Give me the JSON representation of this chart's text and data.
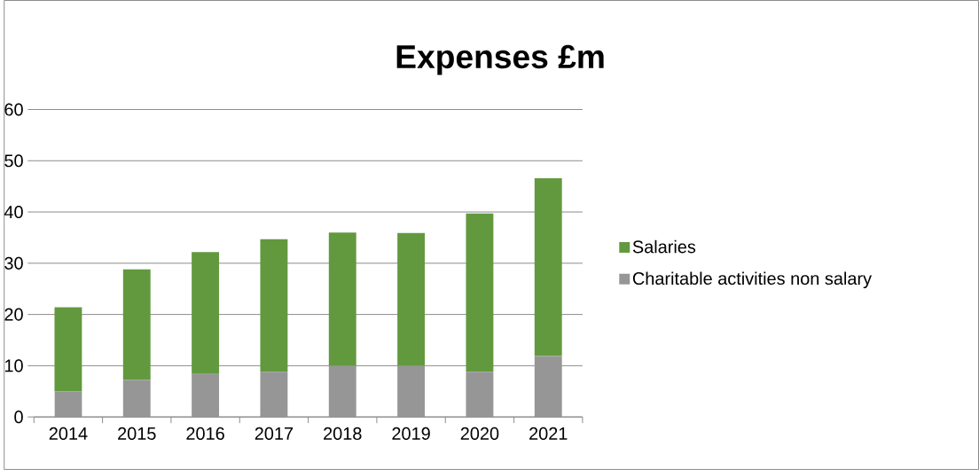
{
  "chart_data": {
    "type": "bar",
    "title": "Expenses £m",
    "stacked": true,
    "categories": [
      "2014",
      "2015",
      "2016",
      "2017",
      "2018",
      "2019",
      "2020",
      "2021"
    ],
    "series": [
      {
        "name": "Charitable activities non salary",
        "color": "#969696",
        "values": [
          5.0,
          7.2,
          8.4,
          8.8,
          10.0,
          10.0,
          8.8,
          11.9
        ]
      },
      {
        "name": "Salaries",
        "color": "#62993e",
        "values": [
          16.4,
          21.6,
          23.8,
          25.9,
          26.0,
          25.9,
          30.9,
          34.7
        ]
      }
    ],
    "ylim": [
      0,
      60
    ],
    "yticks": [
      0,
      10,
      20,
      30,
      40,
      50,
      60
    ],
    "grid": "y",
    "legend": "right"
  }
}
